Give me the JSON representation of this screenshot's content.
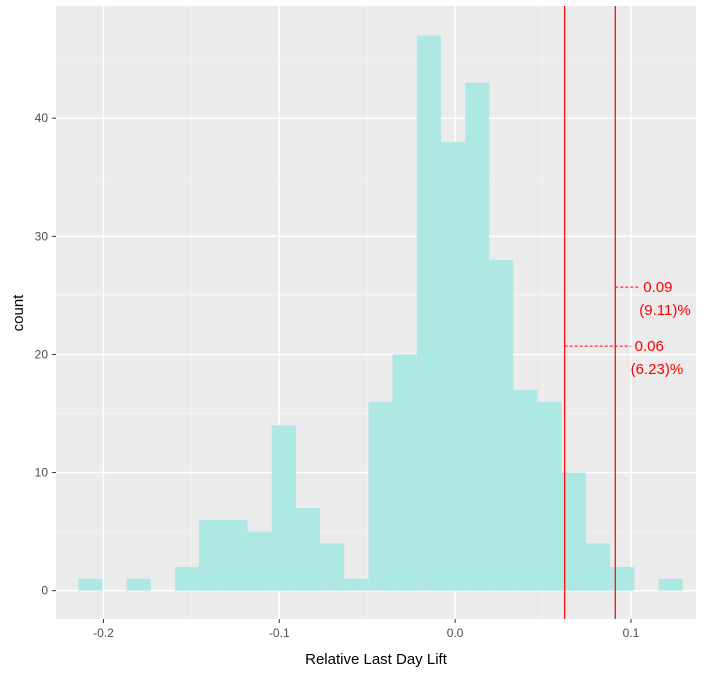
{
  "chart_data": {
    "type": "bar",
    "subtype": "histogram",
    "title": "",
    "xlabel": "Relative Last Day Lift",
    "ylabel": "count",
    "xlim": [
      -0.227,
      0.137
    ],
    "ylim": [
      -2.4,
      49.5
    ],
    "x_ticks": [
      -0.2,
      -0.1,
      0.0,
      0.1
    ],
    "x_tick_labels": [
      "-0.2",
      "-0.1",
      "0.0",
      "0.1"
    ],
    "y_ticks": [
      0,
      10,
      20,
      30,
      40
    ],
    "y_tick_labels": [
      "0",
      "10",
      "20",
      "30",
      "40"
    ],
    "grid": true,
    "bin_width": 0.01375,
    "bins": [
      {
        "x0": -0.2143,
        "count": 1
      },
      {
        "x0": -0.2006,
        "count": 0
      },
      {
        "x0": -0.1868,
        "count": 1
      },
      {
        "x0": -0.1731,
        "count": 0
      },
      {
        "x0": -0.1593,
        "count": 2
      },
      {
        "x0": -0.1456,
        "count": 6
      },
      {
        "x0": -0.1318,
        "count": 6
      },
      {
        "x0": -0.1181,
        "count": 5
      },
      {
        "x0": -0.1043,
        "count": 14
      },
      {
        "x0": -0.0906,
        "count": 7
      },
      {
        "x0": -0.0768,
        "count": 4
      },
      {
        "x0": -0.0631,
        "count": 1
      },
      {
        "x0": -0.0493,
        "count": 16
      },
      {
        "x0": -0.0356,
        "count": 20
      },
      {
        "x0": -0.0218,
        "count": 47
      },
      {
        "x0": -0.0081,
        "count": 38
      },
      {
        "x0": 0.0057,
        "count": 43
      },
      {
        "x0": 0.0194,
        "count": 28
      },
      {
        "x0": 0.0332,
        "count": 17
      },
      {
        "x0": 0.0469,
        "count": 16
      },
      {
        "x0": 0.0607,
        "count": 10
      },
      {
        "x0": 0.0744,
        "count": 4
      },
      {
        "x0": 0.0882,
        "count": 2
      },
      {
        "x0": 0.1019,
        "count": 0
      },
      {
        "x0": 0.1157,
        "count": 1
      }
    ],
    "fill_color": "#aee8e3",
    "vlines": [
      {
        "x": 0.0623,
        "color": "#ff0000",
        "label_value": "0.06",
        "label_pct": "(6.23)%",
        "label_y": 20.7
      },
      {
        "x": 0.0911,
        "color": "#ff0000",
        "label_value": "0.09",
        "label_pct": "(9.11)%",
        "label_y": 25.7
      }
    ]
  },
  "colors": {
    "panel_bg": "#ebebeb",
    "grid_major": "#ffffff",
    "grid_minor": "#f4f4f4",
    "bar_fill": "#aee8e3",
    "annotation": "#ff0000",
    "tick_mark": "#333333"
  }
}
